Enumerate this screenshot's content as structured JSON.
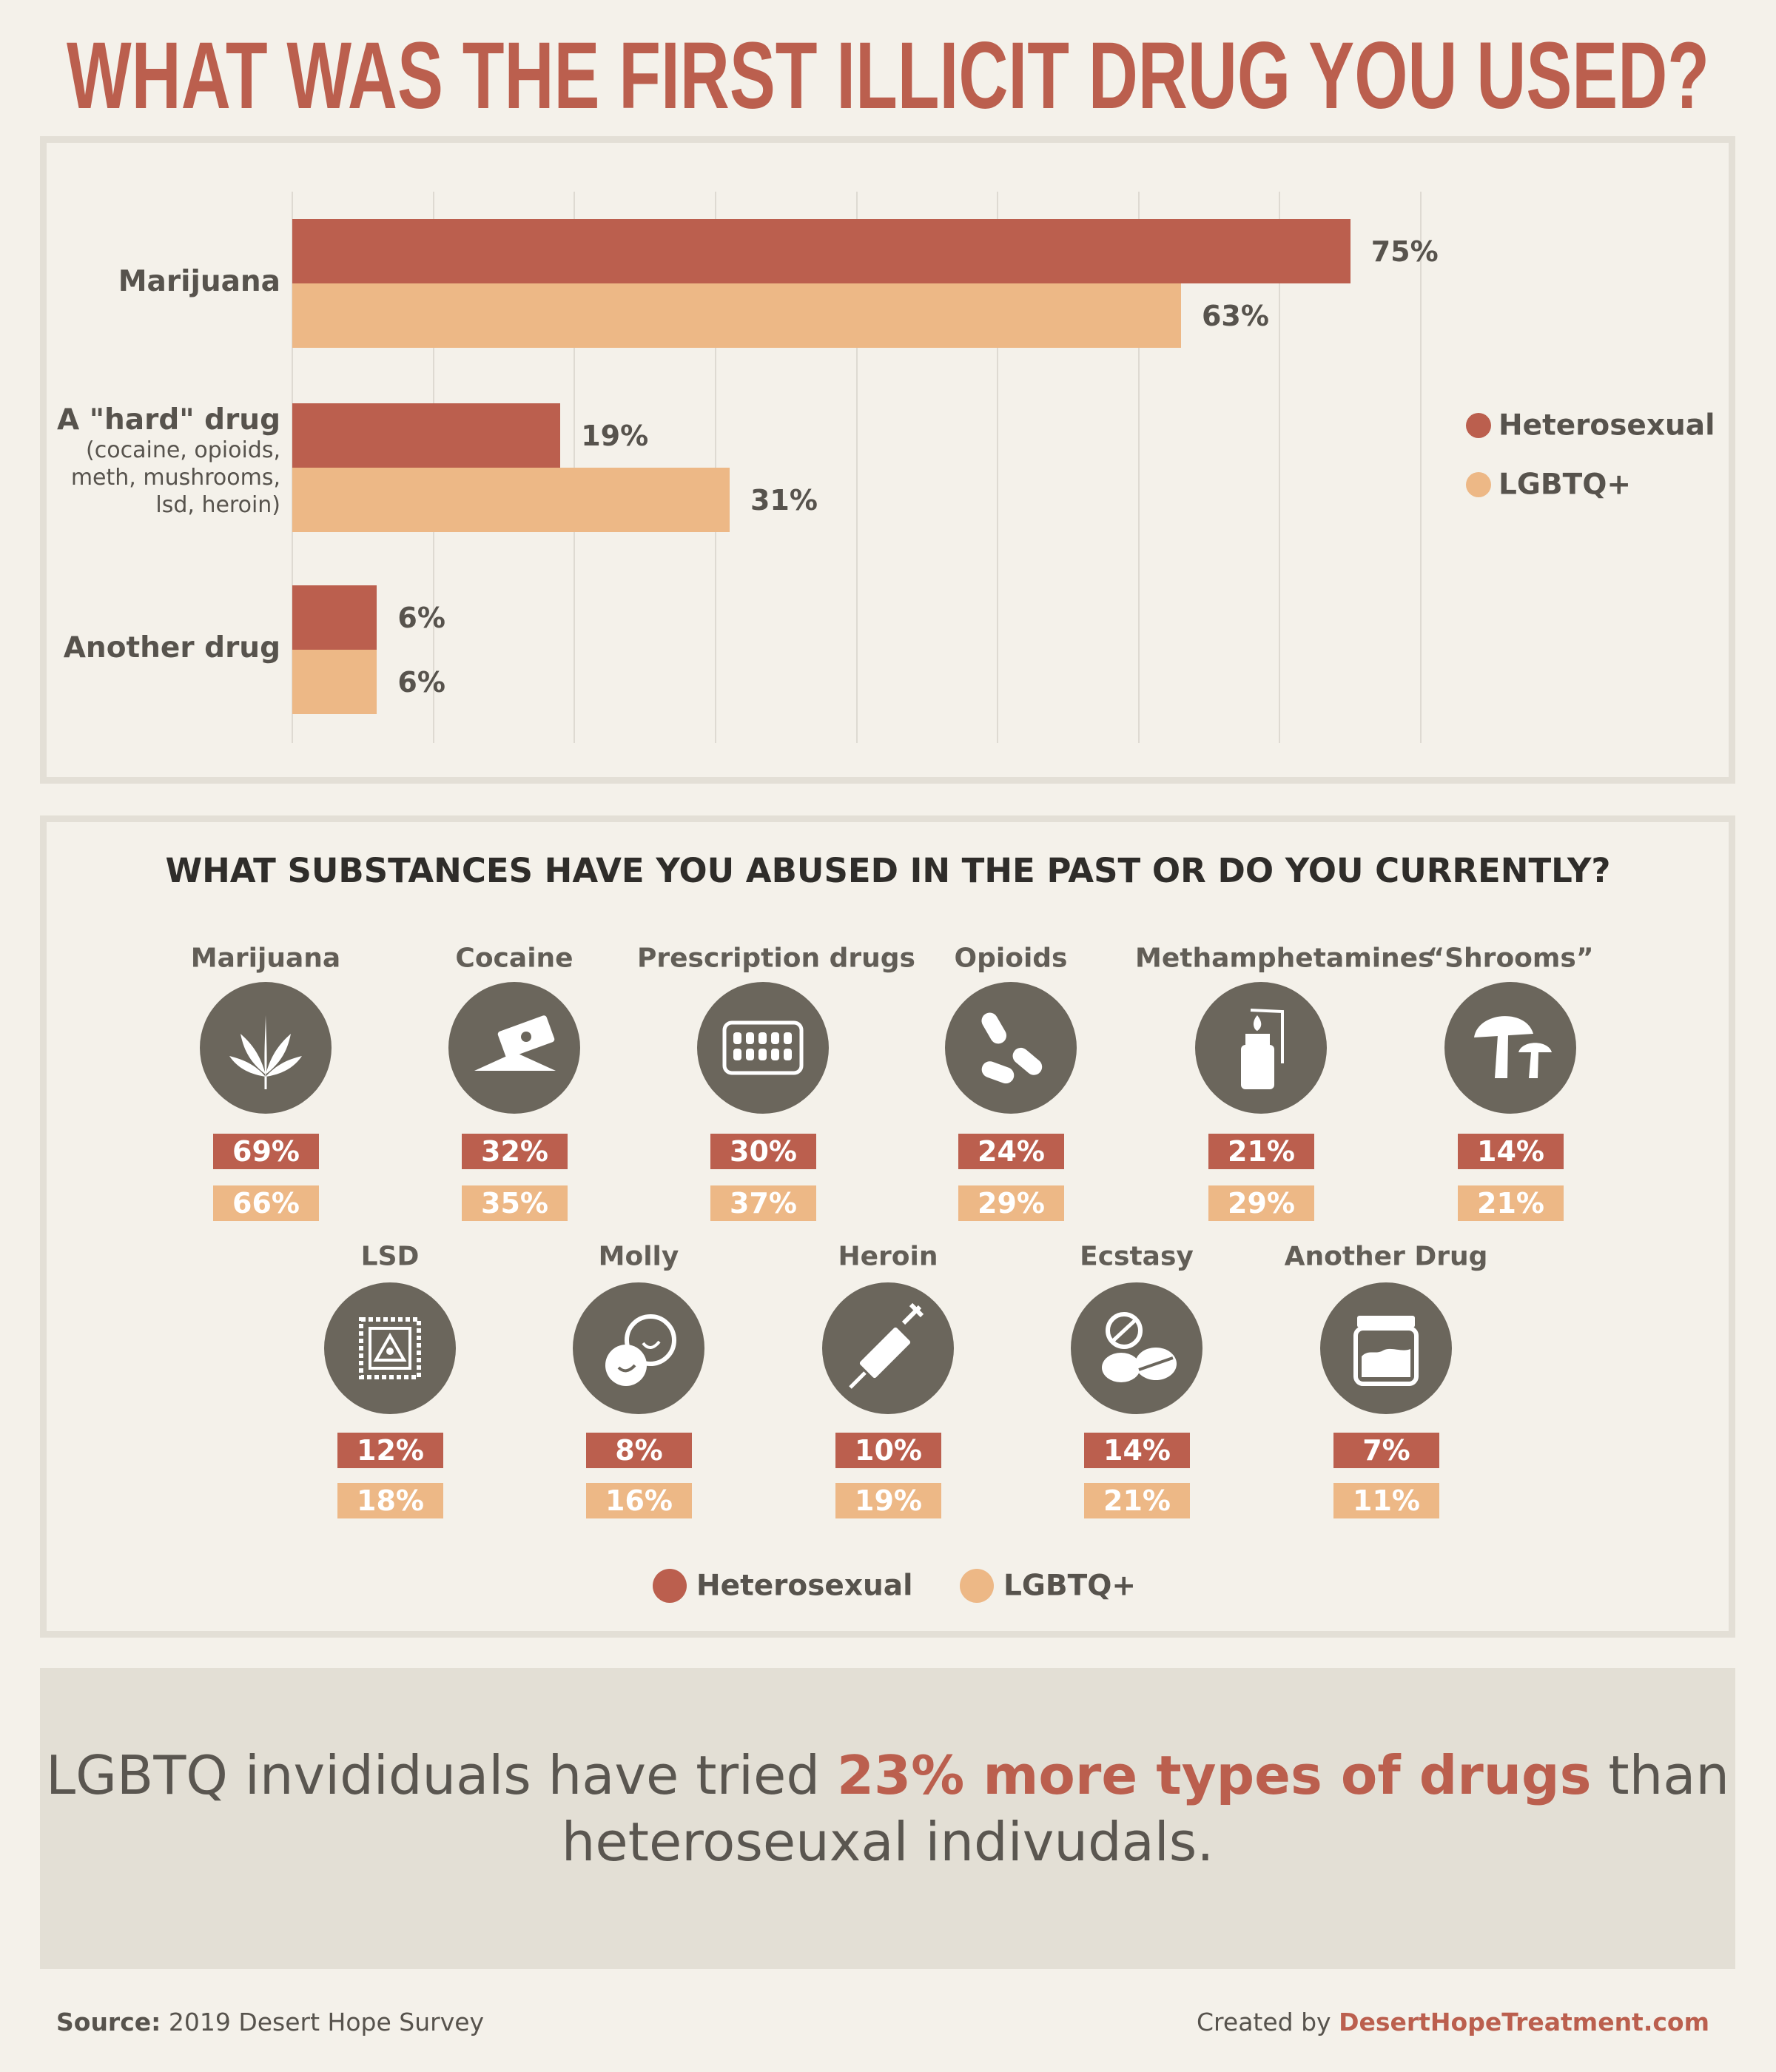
{
  "title": "WHAT WAS THE FIRST ILLICIT DRUG YOU USED?",
  "colors": {
    "heterosexual": "#bb5f4e",
    "lgbtq": "#edb886",
    "icon_bg": "#6b665c",
    "background": "#f4f1ea"
  },
  "chart_data": {
    "type": "bar",
    "orientation": "horizontal",
    "categories": [
      "Marijuana",
      "A \"hard\" drug",
      "Another drug"
    ],
    "category_notes": [
      "",
      "(cocaine, opioids, meth, mushrooms, lsd, heroin)",
      ""
    ],
    "category_note_lines": [
      [],
      [
        "(cocaine, opioids,",
        "meth, mushrooms,",
        "lsd, heroin)"
      ],
      []
    ],
    "series": [
      {
        "name": "Heterosexual",
        "values": [
          75,
          19,
          6
        ],
        "labels": [
          "75%",
          "19%",
          "6%"
        ]
      },
      {
        "name": "LGBTQ+",
        "values": [
          63,
          31,
          6
        ],
        "labels": [
          "63%",
          "31%",
          "6%"
        ]
      }
    ],
    "xlim": [
      0,
      80
    ],
    "grid": true,
    "gridline_step": 10,
    "legend": "right"
  },
  "substances": {
    "heading": "WHAT SUBSTANCES HAVE YOU ABUSED IN THE PAST OR DO YOU CURRENTLY?",
    "items": [
      {
        "name": "Marijuana",
        "icon": "cannabis-leaf-icon",
        "heterosexual": "69%",
        "lgbtq": "66%"
      },
      {
        "name": "Cocaine",
        "icon": "razor-blade-powder-icon",
        "heterosexual": "32%",
        "lgbtq": "35%"
      },
      {
        "name": "Prescription drugs",
        "icon": "pill-blister-pack-icon",
        "heterosexual": "30%",
        "lgbtq": "37%"
      },
      {
        "name": "Opioids",
        "icon": "capsules-icon",
        "heterosexual": "24%",
        "lgbtq": "29%"
      },
      {
        "name": "Methamphetamines",
        "icon": "lighter-flame-icon",
        "heterosexual": "21%",
        "lgbtq": "29%"
      },
      {
        "name": "“Shrooms”",
        "icon": "mushroom-icon",
        "heterosexual": "14%",
        "lgbtq": "21%"
      },
      {
        "name": "LSD",
        "icon": "blotter-stamp-icon",
        "heterosexual": "12%",
        "lgbtq": "18%"
      },
      {
        "name": "Molly",
        "icon": "smiley-pills-icon",
        "heterosexual": "8%",
        "lgbtq": "16%"
      },
      {
        "name": "Heroin",
        "icon": "syringe-icon",
        "heterosexual": "10%",
        "lgbtq": "19%"
      },
      {
        "name": "Ecstasy",
        "icon": "scored-tablets-icon",
        "heterosexual": "14%",
        "lgbtq": "21%"
      },
      {
        "name": "Another Drug",
        "icon": "jar-icon",
        "heterosexual": "7%",
        "lgbtq": "11%"
      }
    ],
    "legend": [
      "Heterosexual",
      "LGBTQ+"
    ]
  },
  "callout": {
    "before": "LGBTQ invididuals have tried ",
    "highlight": "23% more types of drugs",
    "after": " than heteroseuxal indivudals."
  },
  "footer": {
    "source_label": "Source:",
    "source_text": " 2019 Desert Hope Survey",
    "created_label": "Created by ",
    "created_link": "DesertHopeTreatment.com"
  }
}
